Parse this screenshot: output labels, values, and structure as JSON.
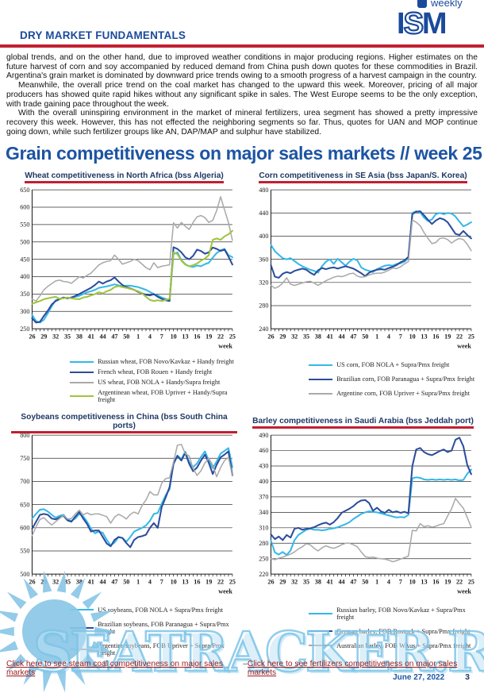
{
  "header": {
    "title": "DRY MARKET FUNDAMENTALS",
    "logo": {
      "i": "I",
      "s": "S",
      "m": "M",
      "tagline": "weekly"
    }
  },
  "body_paragraphs": [
    "global trends, and on the other hand, due to improved weather conditions in major producing regions. Higher estimates on the future harvest of corn and soy accompanied by reduced demand from China push down quotes for these commodities in Brazil. Argentina's grain market is dominated by downward price trends owing to a smooth progress of a harvest campaign in the country.",
    "Meanwhile, the overall price trend on the coal market has changed to the upward this week. Moreover, pricing of all major producers has showed quite rapid hikes without any significant spike in sales. The West Europe seems to be the only exception, with trade gaining pace throughout the week.",
    "With the overall uninspiring environment in the market of mineral fertilizers, urea segment has showed a pretty impressive recovery this week. However, this has not effected the neighboring segments so far. Thus, quotes for UAN and MOP continue going down, while such fertilizer groups like AN, DAP/MAP and sulphur have stabilized."
  ],
  "section_title": "Grain competitiveness on major sales markets // week 25",
  "colors": {
    "header_blue": "#1b4a9b",
    "heading_blue": "#1c54a3",
    "title_navy": "#1f3864",
    "rule_red": "#c12031",
    "link_red": "#9b1c1c",
    "watermark_blue": "#7dc4e8",
    "series_cyan": "#35b8e8",
    "series_dark_blue": "#2b4d9b",
    "series_gray": "#a9a9a9",
    "series_green": "#9fc43c"
  },
  "chart_data": [
    {
      "type": "line",
      "title": "Wheat competitiveness in North Africa (bss Algeria)",
      "x_label": "week",
      "x_tick_labels": [
        "26",
        "29",
        "32",
        "35",
        "38",
        "41",
        "44",
        "47",
        "50",
        "1",
        "4",
        "7",
        "10",
        "13",
        "16",
        "19",
        "22",
        "25"
      ],
      "ylim": [
        250,
        650
      ],
      "y_step": 50,
      "grid": true,
      "legend_position": "below",
      "series": [
        {
          "name": "Russian wheat, FOB Novo/Kavkaz + Handy freight",
          "color": "#35b8e8",
          "values": [
            290,
            272,
            268,
            276,
            295,
            315,
            332,
            336,
            340,
            338,
            340,
            342,
            345,
            350,
            355,
            358,
            362,
            368,
            370,
            372,
            375,
            378,
            375,
            372,
            374,
            374,
            372,
            370,
            366,
            362,
            356,
            350,
            346,
            340,
            336,
            332,
            465,
            470,
            448,
            436,
            430,
            428,
            432,
            430,
            436,
            440,
            455,
            468,
            476,
            480,
            462,
            456
          ]
        },
        {
          "name": "French wheat, FOB Rouen + Handy freight",
          "color": "#2b4d9b",
          "values": [
            280,
            268,
            270,
            287,
            302,
            320,
            330,
            335,
            340,
            338,
            340,
            345,
            350,
            356,
            362,
            368,
            376,
            386,
            380,
            386,
            390,
            398,
            386,
            376,
            370,
            366,
            362,
            356,
            352,
            348,
            346,
            350,
            342,
            336,
            332,
            330,
            485,
            480,
            470,
            456,
            450,
            460,
            478,
            474,
            466,
            470,
            484,
            480,
            474,
            478,
            458,
            435
          ]
        },
        {
          "name": "US wheat, FOB NOLA + Handy/Supra freight",
          "color": "#a9a9a9",
          "values": [
            335,
            330,
            345,
            362,
            372,
            380,
            388,
            390,
            386,
            385,
            381,
            390,
            400,
            396,
            404,
            410,
            422,
            434,
            440,
            444,
            446,
            462,
            450,
            436,
            440,
            444,
            450,
            446,
            436,
            426,
            420,
            440,
            426,
            430,
            432,
            434,
            555,
            540,
            556,
            545,
            536,
            556,
            572,
            576,
            570,
            556,
            562,
            590,
            630,
            592,
            556,
            505
          ]
        },
        {
          "name": "Argentinean wheat, FOB Upriver + Handy/Supra freight",
          "color": "#9fc43c",
          "values": [
            322,
            326,
            330,
            335,
            338,
            340,
            342,
            336,
            338,
            340,
            338,
            336,
            335,
            340,
            342,
            346,
            350,
            355,
            352,
            358,
            362,
            370,
            373,
            370,
            368,
            365,
            362,
            358,
            352,
            342,
            333,
            330,
            332,
            330,
            333,
            336,
            470,
            465,
            446,
            435,
            430,
            433,
            438,
            446,
            452,
            462,
            506,
            510,
            506,
            516,
            522,
            532
          ]
        }
      ]
    },
    {
      "type": "line",
      "title": "Corn competitiveness in SE Asia (bss Japan/S. Korea)",
      "x_label": "week",
      "x_tick_labels": [
        "26",
        "29",
        "32",
        "35",
        "38",
        "41",
        "44",
        "47",
        "50",
        "1",
        "4",
        "7",
        "10",
        "13",
        "16",
        "19",
        "22",
        "25"
      ],
      "ylim": [
        240,
        480
      ],
      "y_step": 40,
      "grid": true,
      "legend_position": "below",
      "series": [
        {
          "name": "US corn, FOB NOLA + Supra/Pmx freight",
          "color": "#35b8e8",
          "values": [
            385,
            374,
            368,
            362,
            360,
            362,
            357,
            352,
            348,
            345,
            342,
            340,
            337,
            348,
            356,
            360,
            352,
            361,
            355,
            349,
            356,
            361,
            358,
            346,
            342,
            340,
            338,
            343,
            346,
            349,
            350,
            349,
            352,
            353,
            356,
            362,
            440,
            443,
            441,
            432,
            426,
            429,
            438,
            440,
            438,
            440,
            439,
            434,
            425,
            417,
            420,
            424
          ]
        },
        {
          "name": "Brazilian corn, FOB Paranagua + Supra/Pmx freight",
          "color": "#2b4d9b",
          "values": [
            350,
            330,
            328,
            335,
            338,
            336,
            340,
            342,
            344,
            342,
            337,
            333,
            341,
            345,
            343,
            345,
            346,
            344,
            346,
            348,
            346,
            344,
            340,
            336,
            331,
            337,
            340,
            342,
            343,
            342,
            345,
            347,
            350,
            355,
            358,
            364,
            438,
            442,
            443,
            436,
            428,
            421,
            427,
            431,
            429,
            424,
            414,
            404,
            402,
            409,
            402,
            396
          ]
        },
        {
          "name": "Argentine corn, FOB Upriver + Supra/Pmx freight",
          "color": "#a9a9a9",
          "values": [
            315,
            310,
            313,
            319,
            328,
            317,
            315,
            317,
            319,
            321,
            322,
            319,
            315,
            319,
            323,
            326,
            329,
            331,
            330,
            332,
            335,
            336,
            331,
            329,
            330,
            333,
            335,
            336,
            336,
            338,
            341,
            345,
            344,
            347,
            352,
            356,
            428,
            424,
            418,
            406,
            396,
            387,
            389,
            396,
            397,
            394,
            388,
            393,
            396,
            394,
            386,
            375
          ]
        }
      ]
    },
    {
      "type": "line",
      "title": "Soybeans competitiveness in China (bss South China ports)",
      "x_label": "week",
      "x_tick_labels": [
        "26",
        "29",
        "32",
        "35",
        "38",
        "41",
        "44",
        "47",
        "50",
        "1",
        "4",
        "7",
        "10",
        "13",
        "16",
        "19",
        "22",
        "25"
      ],
      "ylim": [
        500,
        800
      ],
      "y_step": 50,
      "grid": true,
      "legend_position": "below",
      "series": [
        {
          "name": "US soybeans, FOB NOLA + Supra/Pmx freight",
          "color": "#35b8e8",
          "values": [
            620,
            630,
            639,
            640,
            635,
            628,
            622,
            626,
            628,
            618,
            615,
            620,
            630,
            625,
            613,
            598,
            588,
            592,
            589,
            574,
            562,
            568,
            580,
            578,
            570,
            580,
            592,
            596,
            600,
            605,
            615,
            630,
            632,
            652,
            670,
            683,
            740,
            756,
            748,
            764,
            742,
            731,
            739,
            753,
            765,
            745,
            729,
            743,
            760,
            766,
            772,
            731
          ]
        },
        {
          "name": "Brazilian soybeans, FOB Paranagua + Supra/Pmx freight",
          "color": "#2b4d9b",
          "values": [
            598,
            613,
            628,
            630,
            628,
            620,
            618,
            622,
            626,
            616,
            613,
            624,
            634,
            620,
            608,
            592,
            594,
            594,
            580,
            566,
            560,
            574,
            580,
            578,
            567,
            558,
            574,
            580,
            582,
            585,
            600,
            610,
            600,
            645,
            665,
            688,
            738,
            755,
            745,
            762,
            738,
            722,
            730,
            745,
            758,
            740,
            716,
            736,
            752,
            758,
            765,
            713
          ]
        },
        {
          "name": "Argentine soybeans, FOB Upriver + Supra/Pmx freight",
          "color": "#a9a9a9",
          "values": [
            583,
            602,
            618,
            622,
            613,
            606,
            613,
            620,
            627,
            619,
            620,
            630,
            638,
            628,
            632,
            628,
            630,
            630,
            627,
            624,
            610,
            623,
            629,
            625,
            619,
            629,
            634,
            630,
            648,
            660,
            678,
            671,
            671,
            696,
            706,
            708,
            742,
            778,
            780,
            760,
            755,
            728,
            713,
            723,
            740,
            750,
            735,
            710,
            730,
            745,
            752,
            712
          ]
        }
      ]
    },
    {
      "type": "line",
      "title": "Barley competitiveness in Saudi Arabia (bss Jeddah port)",
      "x_label": "week",
      "x_tick_labels": [
        "26",
        "29",
        "32",
        "35",
        "38",
        "41",
        "44",
        "47",
        "50",
        "1",
        "4",
        "7",
        "10",
        "13",
        "16",
        "19",
        "22",
        "25"
      ],
      "ylim": [
        220,
        490
      ],
      "y_step": 30,
      "grid": true,
      "legend_position": "below",
      "series": [
        {
          "name": "Russian barley, FOB Novo/Kavkaz + Supra/Pmx freight",
          "color": "#35b8e8",
          "values": [
            285,
            262,
            258,
            263,
            257,
            266,
            286,
            296,
            301,
            306,
            308,
            306,
            306,
            305,
            306,
            308,
            309,
            311,
            314,
            317,
            321,
            327,
            332,
            337,
            340,
            342,
            341,
            340,
            338,
            336,
            334,
            332,
            330,
            331,
            330,
            335,
            406,
            408,
            407,
            404,
            403,
            404,
            403,
            404,
            403,
            404,
            403,
            404,
            402,
            403,
            415,
            423
          ]
        },
        {
          "name": "German barley, FOB Rostock + Supra/Pmx freight",
          "color": "#2b4d9b",
          "values": [
            297,
            288,
            293,
            286,
            296,
            291,
            308,
            310,
            306,
            308,
            309,
            311,
            315,
            318,
            320,
            316,
            321,
            329,
            339,
            343,
            347,
            352,
            359,
            363,
            364,
            358,
            343,
            349,
            342,
            339,
            345,
            340,
            342,
            339,
            341,
            338,
            430,
            462,
            465,
            457,
            453,
            451,
            455,
            459,
            462,
            457,
            460,
            481,
            485,
            468,
            432,
            414
          ]
        },
        {
          "name": "Australian barley, FOB WAus + Supra/Pmx freight",
          "color": "#a9a9a9",
          "values": [
            250,
            248,
            251,
            253,
            256,
            259,
            263,
            269,
            273,
            279,
            277,
            270,
            265,
            271,
            275,
            272,
            270,
            273,
            277,
            280,
            280,
            277,
            273,
            263,
            254,
            252,
            253,
            251,
            250,
            249,
            247,
            244,
            246,
            249,
            252,
            255,
            305,
            304,
            318,
            312,
            314,
            311,
            313,
            316,
            318,
            333,
            347,
            367,
            357,
            348,
            330,
            311
          ]
        }
      ]
    }
  ],
  "footer": {
    "links": [
      {
        "label": "Click here to see steam coal competitiveness on major sales markets"
      },
      {
        "label": "Click here to see fertilizers competitiveness on major sales markets"
      }
    ],
    "separator": "–",
    "date": "June 27, 2022",
    "page": "3"
  },
  "watermark": {
    "text": "SEATRACKER.RU"
  }
}
